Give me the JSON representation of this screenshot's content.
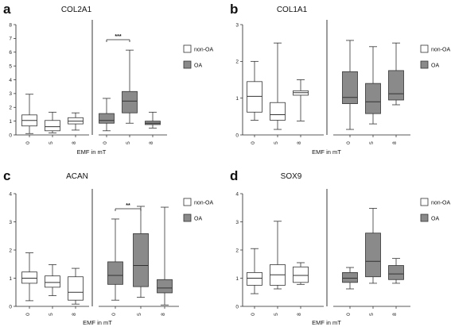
{
  "colors": {
    "non_oa_fill": "#ffffff",
    "oa_fill": "#8a8a8a",
    "line": "#333333"
  },
  "chart_data": [
    {
      "panel": "a",
      "title": "COL2A1",
      "type": "box",
      "xlabel": "EMF in mT",
      "ylim": [
        0,
        8
      ],
      "yticks": [
        "0",
        "1",
        "2",
        "3",
        "4",
        "5",
        "6",
        "7",
        "8"
      ],
      "categories": [
        "0",
        "5",
        "8"
      ],
      "legend": [
        "non-OA",
        "OA"
      ],
      "legend_position": "top-right",
      "significance": {
        "label": "***",
        "from": "OA-0",
        "to": "OA-5"
      },
      "series": [
        {
          "name": "non-OA",
          "boxes": [
            {
              "min": 0.1,
              "q1": 0.65,
              "median": 1.05,
              "q3": 1.45,
              "max": 2.95
            },
            {
              "min": 0.15,
              "q1": 0.3,
              "median": 0.6,
              "q3": 1.05,
              "max": 1.65
            },
            {
              "min": 0.35,
              "q1": 0.8,
              "median": 1.0,
              "q3": 1.25,
              "max": 1.6
            }
          ]
        },
        {
          "name": "OA",
          "boxes": [
            {
              "min": 0.3,
              "q1": 0.85,
              "median": 1.05,
              "q3": 1.55,
              "max": 2.65
            },
            {
              "min": 0.85,
              "q1": 1.6,
              "median": 2.45,
              "q3": 3.15,
              "max": 6.15
            },
            {
              "min": 0.5,
              "q1": 0.75,
              "median": 0.85,
              "q3": 1.0,
              "max": 1.65
            }
          ]
        }
      ]
    },
    {
      "panel": "b",
      "title": "COL1A1",
      "type": "box",
      "xlabel": "EMF in mT",
      "ylim": [
        0,
        3
      ],
      "yticks": [
        "0",
        "1",
        "2",
        "3"
      ],
      "categories": [
        "0",
        "5",
        "8"
      ],
      "legend": [
        "non-OA",
        "OA"
      ],
      "legend_position": "top-right",
      "series": [
        {
          "name": "non-OA",
          "boxes": [
            {
              "min": 0.4,
              "q1": 0.62,
              "median": 1.05,
              "q3": 1.45,
              "max": 2.0
            },
            {
              "min": 0.15,
              "q1": 0.4,
              "median": 0.55,
              "q3": 0.88,
              "max": 2.5
            },
            {
              "min": 0.38,
              "q1": 1.08,
              "median": 1.15,
              "q3": 1.2,
              "max": 1.5
            }
          ]
        },
        {
          "name": "OA",
          "boxes": [
            {
              "min": 0.15,
              "q1": 0.85,
              "median": 1.02,
              "q3": 1.72,
              "max": 2.57
            },
            {
              "min": 0.3,
              "q1": 0.58,
              "median": 0.9,
              "q3": 1.4,
              "max": 2.4
            },
            {
              "min": 0.82,
              "q1": 0.95,
              "median": 1.12,
              "q3": 1.75,
              "max": 2.5
            }
          ]
        }
      ]
    },
    {
      "panel": "c",
      "title": "ACAN",
      "type": "box",
      "xlabel": "EMF in mT",
      "ylim": [
        0,
        4
      ],
      "yticks": [
        "0",
        "1",
        "2",
        "3",
        "4"
      ],
      "categories": [
        "0",
        "5",
        "8"
      ],
      "legend": [
        "non-OA",
        "OA"
      ],
      "legend_position": "top-right",
      "significance": {
        "label": "**",
        "from": "OA-0",
        "to": "OA-5"
      },
      "series": [
        {
          "name": "non-OA",
          "boxes": [
            {
              "min": 0.2,
              "q1": 0.82,
              "median": 1.0,
              "q3": 1.22,
              "max": 1.9
            },
            {
              "min": 0.38,
              "q1": 0.68,
              "median": 0.85,
              "q3": 1.08,
              "max": 1.48
            },
            {
              "min": 0.08,
              "q1": 0.22,
              "median": 0.5,
              "q3": 1.05,
              "max": 1.35
            }
          ]
        },
        {
          "name": "OA",
          "boxes": [
            {
              "min": 0.22,
              "q1": 0.78,
              "median": 1.1,
              "q3": 1.58,
              "max": 3.1
            },
            {
              "min": 0.32,
              "q1": 0.7,
              "median": 1.45,
              "q3": 2.58,
              "max": 3.55
            },
            {
              "min": 0.05,
              "q1": 0.48,
              "median": 0.65,
              "q3": 0.95,
              "max": 3.52
            }
          ]
        }
      ]
    },
    {
      "panel": "d",
      "title": "SOX9",
      "type": "box",
      "xlabel": "EMF in mT",
      "ylim": [
        0,
        4
      ],
      "yticks": [
        "0",
        "1",
        "2",
        "3",
        "4"
      ],
      "categories": [
        "0",
        "5",
        "8"
      ],
      "legend": [
        "non-OA",
        "OA"
      ],
      "legend_position": "top-right",
      "series": [
        {
          "name": "non-OA",
          "boxes": [
            {
              "min": 0.45,
              "q1": 0.75,
              "median": 1.0,
              "q3": 1.2,
              "max": 2.05
            },
            {
              "min": 0.62,
              "q1": 0.75,
              "median": 1.12,
              "q3": 1.48,
              "max": 3.02
            },
            {
              "min": 0.78,
              "q1": 0.85,
              "median": 1.1,
              "q3": 1.4,
              "max": 1.55
            }
          ]
        },
        {
          "name": "OA",
          "boxes": [
            {
              "min": 0.62,
              "q1": 0.85,
              "median": 1.0,
              "q3": 1.2,
              "max": 1.38
            },
            {
              "min": 0.82,
              "q1": 1.05,
              "median": 1.6,
              "q3": 2.6,
              "max": 3.48
            },
            {
              "min": 0.82,
              "q1": 0.95,
              "median": 1.15,
              "q3": 1.45,
              "max": 1.7
            }
          ]
        }
      ]
    }
  ]
}
